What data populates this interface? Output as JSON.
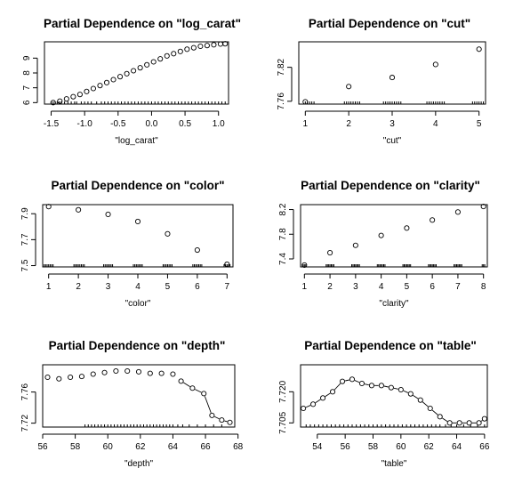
{
  "chart_data": [
    {
      "type": "scatter",
      "title": "Partial Dependence on \"log_carat\"",
      "xlabel": "\"log_carat\"",
      "ylabel": "",
      "xlim": [
        -1.6,
        1.15
      ],
      "ylim": [
        5.9,
        10.1
      ],
      "xticks": [
        -1.5,
        -1.0,
        -0.5,
        0.0,
        0.5,
        1.0
      ],
      "xtick_labels": [
        "-1.5",
        "-1.0",
        "-0.5",
        "0.0",
        "0.5",
        "1.0"
      ],
      "yticks": [
        6,
        7,
        8,
        9
      ],
      "ytick_labels": [
        "6",
        "7",
        "8",
        "9"
      ],
      "x": [
        -1.47,
        -1.37,
        -1.27,
        -1.17,
        -1.07,
        -0.97,
        -0.87,
        -0.77,
        -0.67,
        -0.57,
        -0.47,
        -0.37,
        -0.27,
        -0.17,
        -0.07,
        0.03,
        0.13,
        0.23,
        0.33,
        0.43,
        0.53,
        0.63,
        0.73,
        0.83,
        0.93,
        1.03,
        1.1
      ],
      "y": [
        6.0,
        6.1,
        6.25,
        6.4,
        6.55,
        6.75,
        6.95,
        7.15,
        7.35,
        7.55,
        7.75,
        7.95,
        8.15,
        8.35,
        8.55,
        8.75,
        8.95,
        9.15,
        9.3,
        9.45,
        9.6,
        9.7,
        9.8,
        9.85,
        9.9,
        9.95,
        9.97
      ],
      "connected": false,
      "rug": [
        -1.5,
        -1.47,
        -1.44,
        -1.41,
        -1.38,
        -1.35,
        -1.3,
        -1.25,
        -1.2,
        -1.15,
        -1.12,
        -1.05,
        -1.0,
        -0.95,
        -0.9,
        -0.82,
        -0.75,
        -0.7,
        -0.65,
        -0.6,
        -0.55,
        -0.5,
        -0.45,
        -0.4,
        -0.35,
        -0.3,
        -0.25,
        -0.2,
        -0.15,
        -0.1,
        -0.05,
        0.0,
        0.05,
        0.1,
        0.15,
        0.2,
        0.25,
        0.3,
        0.35,
        0.4,
        0.45,
        0.5,
        0.55,
        0.6,
        0.65,
        0.7,
        0.75,
        0.8,
        0.85,
        0.9,
        0.95,
        1.0,
        1.05,
        1.1
      ]
    },
    {
      "type": "scatter",
      "title": "Partial Dependence on \"cut\"",
      "xlabel": "\"cut\"",
      "ylabel": "",
      "xlim": [
        0.85,
        5.15
      ],
      "ylim": [
        7.755,
        7.865
      ],
      "xticks": [
        1,
        2,
        3,
        4,
        5
      ],
      "xtick_labels": [
        "1",
        "2",
        "3",
        "4",
        "5"
      ],
      "yticks": [
        7.76,
        7.82
      ],
      "ytick_labels": [
        "7.76",
        "7.82"
      ],
      "x": [
        1,
        2,
        3,
        4,
        5
      ],
      "y": [
        7.759,
        7.786,
        7.802,
        7.825,
        7.852
      ],
      "connected": false,
      "rug": [
        1,
        1.05,
        1.1,
        1.15,
        1.2,
        1.9,
        1.95,
        2.0,
        2.05,
        2.1,
        2.15,
        2.2,
        2.25,
        2.8,
        2.85,
        2.9,
        2.95,
        3.0,
        3.05,
        3.1,
        3.15,
        3.2,
        3.8,
        3.85,
        3.9,
        3.95,
        4.0,
        4.05,
        4.1,
        4.15,
        4.2,
        4.85,
        4.9,
        4.95,
        5.0,
        5.05,
        5.1
      ]
    },
    {
      "type": "scatter",
      "title": "Partial Dependence on \"color\"",
      "xlabel": "\"color\"",
      "ylabel": "",
      "xlim": [
        0.8,
        7.2
      ],
      "ylim": [
        7.49,
        7.97
      ],
      "xticks": [
        1,
        2,
        3,
        4,
        5,
        6,
        7
      ],
      "xtick_labels": [
        "1",
        "2",
        "3",
        "4",
        "5",
        "6",
        "7"
      ],
      "yticks": [
        7.5,
        7.7,
        7.9
      ],
      "ytick_labels": [
        "7.5",
        "7.7",
        "7.9"
      ],
      "x": [
        1,
        2,
        3,
        4,
        5,
        6,
        7
      ],
      "y": [
        7.955,
        7.93,
        7.895,
        7.84,
        7.745,
        7.62,
        7.51
      ],
      "connected": false,
      "rug": [
        0.85,
        0.9,
        0.95,
        1.0,
        1.05,
        1.1,
        1.15,
        1.85,
        1.9,
        1.95,
        2.0,
        2.05,
        2.1,
        2.15,
        2.2,
        2.85,
        2.9,
        2.95,
        3.0,
        3.05,
        3.1,
        3.15,
        3.85,
        3.9,
        3.95,
        4.0,
        4.05,
        4.1,
        4.15,
        4.85,
        4.9,
        4.95,
        5.0,
        5.05,
        5.1,
        5.15,
        5.85,
        5.9,
        5.95,
        6.0,
        6.05,
        6.1,
        6.15,
        6.9,
        6.95,
        7.0,
        7.05,
        7.1
      ]
    },
    {
      "type": "scatter",
      "title": "Partial Dependence on \"clarity\"",
      "xlabel": "\"clarity\"",
      "ylabel": "",
      "xlim": [
        0.85,
        8.15
      ],
      "ylim": [
        7.27,
        8.28
      ],
      "xticks": [
        1,
        2,
        3,
        4,
        5,
        6,
        7,
        8
      ],
      "xtick_labels": [
        "1",
        "2",
        "3",
        "4",
        "5",
        "6",
        "7",
        "8"
      ],
      "yticks": [
        7.4,
        7.8,
        8.2
      ],
      "ytick_labels": [
        "7.4",
        "7.8",
        "8.2"
      ],
      "x": [
        1,
        2,
        3,
        4,
        5,
        6,
        7,
        8
      ],
      "y": [
        7.3,
        7.5,
        7.62,
        7.78,
        7.9,
        8.03,
        8.16,
        8.25
      ],
      "connected": false,
      "rug": [
        0.95,
        1.0,
        1.05,
        1.85,
        1.9,
        1.95,
        2.0,
        2.05,
        2.1,
        2.15,
        2.85,
        2.9,
        2.95,
        3.0,
        3.05,
        3.1,
        3.15,
        3.85,
        3.9,
        3.95,
        4.0,
        4.05,
        4.1,
        4.15,
        4.85,
        4.9,
        4.95,
        5.0,
        5.05,
        5.1,
        5.15,
        5.85,
        5.9,
        5.95,
        6.0,
        6.05,
        6.1,
        6.15,
        6.85,
        6.9,
        6.95,
        7.0,
        7.05,
        7.1,
        7.15,
        7.95,
        8.0,
        8.05
      ]
    },
    {
      "type": "line",
      "title": "Partial Dependence on \"depth\"",
      "xlabel": "\"depth\"",
      "ylabel": "",
      "xlim": [
        56,
        67.8
      ],
      "ylim": [
        7.715,
        7.795
      ],
      "xticks": [
        56,
        58,
        60,
        62,
        64,
        66,
        68
      ],
      "xtick_labels": [
        "56",
        "58",
        "60",
        "62",
        "64",
        "66",
        "68"
      ],
      "yticks": [
        7.72,
        7.76
      ],
      "ytick_labels": [
        "7.72",
        "7.76"
      ],
      "x": [
        56.3,
        57.0,
        57.7,
        58.4,
        59.1,
        59.8,
        60.5,
        61.2,
        61.9,
        62.6,
        63.3,
        64.0,
        64.5,
        65.2,
        65.9,
        66.4,
        67.0,
        67.5
      ],
      "y": [
        7.779,
        7.777,
        7.779,
        7.78,
        7.783,
        7.785,
        7.787,
        7.787,
        7.786,
        7.784,
        7.784,
        7.783,
        7.774,
        7.765,
        7.758,
        7.73,
        7.724,
        7.721
      ],
      "connected": true,
      "connected_from_index": 12,
      "rug": [
        58.6,
        58.8,
        59.0,
        59.2,
        59.4,
        59.6,
        59.8,
        60.0,
        60.2,
        60.4,
        60.6,
        60.8,
        61.0,
        61.2,
        61.4,
        61.6,
        61.8,
        62.0,
        62.2,
        62.4,
        62.6,
        62.8,
        63.0,
        63.2,
        63.4,
        63.6,
        63.8,
        64.0,
        64.3,
        64.6,
        65.0,
        65.5,
        66.0,
        66.5,
        67.0
      ]
    },
    {
      "type": "line",
      "title": "Partial Dependence on \"table\"",
      "xlabel": "\"table\"",
      "ylabel": "",
      "xlim": [
        52.8,
        66.2
      ],
      "ylim": [
        7.703,
        7.733
      ],
      "xticks": [
        54,
        56,
        58,
        60,
        62,
        64,
        66
      ],
      "xtick_labels": [
        "54",
        "56",
        "58",
        "60",
        "62",
        "64",
        "66"
      ],
      "yticks": [
        7.705,
        7.72
      ],
      "ytick_labels": [
        "7.705",
        "7.720"
      ],
      "x": [
        53.0,
        53.7,
        54.4,
        55.1,
        55.8,
        56.5,
        57.2,
        57.9,
        58.6,
        59.3,
        60.0,
        60.7,
        61.4,
        62.1,
        62.8,
        63.5,
        64.2,
        64.9,
        65.6,
        66.0
      ],
      "y": [
        7.712,
        7.714,
        7.717,
        7.72,
        7.725,
        7.726,
        7.724,
        7.723,
        7.723,
        7.722,
        7.721,
        7.719,
        7.716,
        7.712,
        7.708,
        7.705,
        7.705,
        7.705,
        7.705,
        7.707
      ],
      "connected": true,
      "connected_from_index": 0,
      "rug": [
        53.2,
        53.5,
        53.8,
        54.1,
        54.4,
        54.7,
        55.0,
        55.3,
        55.6,
        55.9,
        56.2,
        56.5,
        56.8,
        57.1,
        57.4,
        57.7,
        58.0,
        58.3,
        58.6,
        58.9,
        59.2,
        59.5,
        59.8,
        60.1,
        60.4,
        60.7,
        61.0,
        61.3,
        61.6,
        61.9,
        62.2,
        62.5,
        62.8,
        63.2,
        63.6,
        64.0,
        64.5,
        65.0,
        65.5,
        66.0
      ]
    }
  ]
}
